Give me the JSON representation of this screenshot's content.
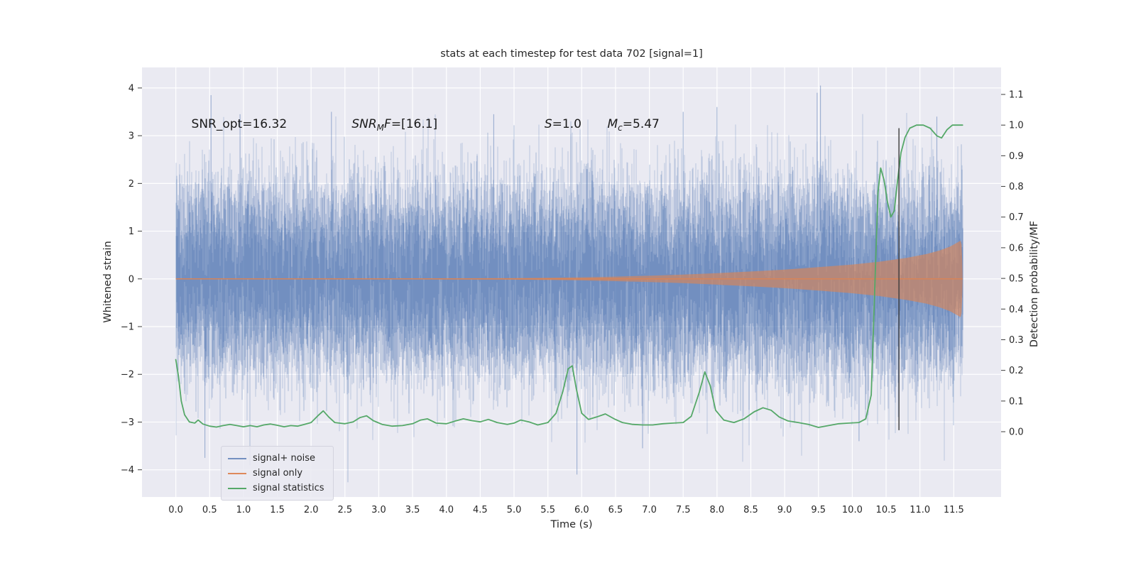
{
  "chart_data": {
    "type": "line",
    "title": "stats at each timestep for test data 702 [signal=1]",
    "xlabel": "Time (s)",
    "ylabel_left": "Whitened strain",
    "ylabel_right": "Detection probability/MF",
    "axes_background": "#eaeaf2",
    "grid_color": "#ffffff",
    "text_color": "#262626",
    "grid_on": true,
    "legend_position": "lower left",
    "xlim": [
      -0.5,
      12.2
    ],
    "ylim_left": [
      -4.57,
      4.43
    ],
    "ylim_right": [
      -0.213,
      1.188
    ],
    "t_start": 0.0,
    "t_end": 11.63,
    "vline": {
      "x": 10.69,
      "color": "#3a3a3a",
      "p_from": 0.005,
      "p_to": 0.99
    },
    "xticks": {
      "values": [
        0,
        0.5,
        1,
        1.5,
        2,
        2.5,
        3,
        3.5,
        4,
        4.5,
        5,
        5.5,
        6,
        6.5,
        7,
        7.5,
        8,
        8.5,
        9,
        9.5,
        10,
        10.5,
        11,
        11.5
      ],
      "labels": [
        "0.0",
        "0.5",
        "1.0",
        "1.5",
        "2.0",
        "2.5",
        "3.0",
        "3.5",
        "4.0",
        "4.5",
        "5.0",
        "5.5",
        "6.0",
        "6.5",
        "7.0",
        "7.5",
        "8.0",
        "8.5",
        "9.0",
        "9.5",
        "10.0",
        "10.5",
        "11.0",
        "11.5"
      ]
    },
    "yticks_left": {
      "values": [
        -4,
        -3,
        -2,
        -1,
        0,
        1,
        2,
        3,
        4
      ],
      "labels": [
        "−4",
        "−3",
        "−2",
        "−1",
        "0",
        "1",
        "2",
        "3",
        "4"
      ]
    },
    "yticks_right": {
      "values": [
        0,
        0.1,
        0.2,
        0.3,
        0.4,
        0.5,
        0.6,
        0.7,
        0.8,
        0.9,
        1.0,
        1.1
      ],
      "labels": [
        "0.0",
        "0.1",
        "0.2",
        "0.3",
        "0.4",
        "0.5",
        "0.6",
        "0.7",
        "0.8",
        "0.9",
        "1.0",
        "1.1"
      ]
    },
    "annotations": [
      {
        "x": 0.23,
        "y": 3.2,
        "parts": [
          {
            "t": "SNR_opt=16.32"
          }
        ]
      },
      {
        "x": 2.6,
        "y": 3.2,
        "parts": [
          {
            "t": "SNR",
            "i": true
          },
          {
            "t": "M",
            "i": true,
            "sub": true
          },
          {
            "t": "F",
            "i": true
          },
          {
            "t": "=[16.1]"
          }
        ]
      },
      {
        "x": 5.45,
        "y": 3.2,
        "parts": [
          {
            "t": "S",
            "i": true
          },
          {
            "t": "=1.0"
          }
        ]
      },
      {
        "x": 6.38,
        "y": 3.2,
        "parts": [
          {
            "t": "M",
            "i": true
          },
          {
            "t": "c",
            "i": true,
            "sub": true
          },
          {
            "t": "=5.47"
          }
        ]
      }
    ],
    "series": [
      {
        "name": "signal+ noise",
        "color": "#4c72b0",
        "kind": "noise",
        "std": 1.0,
        "passes": [
          {
            "k": 20,
            "sigma": 1.0,
            "opacity": 0.3
          },
          {
            "k": 8,
            "sigma": 0.92,
            "opacity": 0.4
          },
          {
            "k": 4,
            "sigma": 0.75,
            "opacity": 0.42
          }
        ],
        "spikes": [
          [
            0.43,
            -3.75
          ],
          [
            0.52,
            3.85
          ],
          [
            0.95,
            3.45
          ],
          [
            2.3,
            3.5
          ],
          [
            4.7,
            3.45
          ],
          [
            5.93,
            -4.1
          ],
          [
            6.9,
            -3.55
          ],
          [
            7.5,
            3.5
          ],
          [
            8.0,
            3.6
          ],
          [
            9.48,
            3.9
          ],
          [
            9.53,
            4.05
          ],
          [
            10.1,
            -3.4
          ],
          [
            11.25,
            3.4
          ]
        ]
      },
      {
        "name": "signal only",
        "color": "#dd8452",
        "kind": "chirp",
        "envelope": [
          [
            0,
            0.006
          ],
          [
            3,
            0.008
          ],
          [
            5,
            0.015
          ],
          [
            5.5,
            0.022
          ],
          [
            6,
            0.032
          ],
          [
            6.5,
            0.047
          ],
          [
            7,
            0.065
          ],
          [
            7.5,
            0.09
          ],
          [
            8,
            0.12
          ],
          [
            8.5,
            0.155
          ],
          [
            9,
            0.195
          ],
          [
            9.5,
            0.245
          ],
          [
            10,
            0.3
          ],
          [
            10.4,
            0.36
          ],
          [
            10.8,
            0.44
          ],
          [
            11.1,
            0.52
          ],
          [
            11.3,
            0.6
          ],
          [
            11.45,
            0.68
          ],
          [
            11.55,
            0.76
          ],
          [
            11.6,
            0.8
          ],
          [
            11.615,
            0.72
          ],
          [
            11.625,
            0.4
          ],
          [
            11.63,
            0.1
          ]
        ]
      },
      {
        "name": "signal statistics",
        "color": "#55a868",
        "kind": "probability",
        "points": [
          [
            0,
            0.235
          ],
          [
            0.04,
            0.18
          ],
          [
            0.08,
            0.1
          ],
          [
            0.13,
            0.055
          ],
          [
            0.2,
            0.032
          ],
          [
            0.28,
            0.028
          ],
          [
            0.33,
            0.038
          ],
          [
            0.4,
            0.025
          ],
          [
            0.5,
            0.018
          ],
          [
            0.6,
            0.015
          ],
          [
            0.7,
            0.02
          ],
          [
            0.8,
            0.024
          ],
          [
            0.9,
            0.02
          ],
          [
            1.0,
            0.016
          ],
          [
            1.1,
            0.02
          ],
          [
            1.2,
            0.016
          ],
          [
            1.3,
            0.022
          ],
          [
            1.4,
            0.025
          ],
          [
            1.5,
            0.021
          ],
          [
            1.6,
            0.016
          ],
          [
            1.7,
            0.02
          ],
          [
            1.8,
            0.018
          ],
          [
            1.9,
            0.024
          ],
          [
            2.0,
            0.03
          ],
          [
            2.1,
            0.052
          ],
          [
            2.18,
            0.068
          ],
          [
            2.26,
            0.048
          ],
          [
            2.35,
            0.03
          ],
          [
            2.5,
            0.026
          ],
          [
            2.62,
            0.032
          ],
          [
            2.72,
            0.046
          ],
          [
            2.82,
            0.052
          ],
          [
            2.92,
            0.036
          ],
          [
            3.05,
            0.024
          ],
          [
            3.2,
            0.018
          ],
          [
            3.35,
            0.02
          ],
          [
            3.5,
            0.026
          ],
          [
            3.62,
            0.038
          ],
          [
            3.72,
            0.042
          ],
          [
            3.85,
            0.028
          ],
          [
            4.0,
            0.026
          ],
          [
            4.12,
            0.034
          ],
          [
            4.25,
            0.042
          ],
          [
            4.38,
            0.036
          ],
          [
            4.5,
            0.032
          ],
          [
            4.62,
            0.04
          ],
          [
            4.75,
            0.03
          ],
          [
            4.9,
            0.024
          ],
          [
            5.0,
            0.028
          ],
          [
            5.1,
            0.038
          ],
          [
            5.22,
            0.032
          ],
          [
            5.35,
            0.022
          ],
          [
            5.5,
            0.03
          ],
          [
            5.62,
            0.06
          ],
          [
            5.72,
            0.13
          ],
          [
            5.8,
            0.205
          ],
          [
            5.86,
            0.215
          ],
          [
            5.92,
            0.14
          ],
          [
            6.0,
            0.06
          ],
          [
            6.1,
            0.04
          ],
          [
            6.22,
            0.048
          ],
          [
            6.35,
            0.058
          ],
          [
            6.48,
            0.042
          ],
          [
            6.6,
            0.03
          ],
          [
            6.75,
            0.024
          ],
          [
            6.9,
            0.022
          ],
          [
            7.05,
            0.022
          ],
          [
            7.2,
            0.026
          ],
          [
            7.35,
            0.028
          ],
          [
            7.5,
            0.03
          ],
          [
            7.62,
            0.05
          ],
          [
            7.74,
            0.13
          ],
          [
            7.82,
            0.195
          ],
          [
            7.9,
            0.15
          ],
          [
            7.98,
            0.07
          ],
          [
            8.1,
            0.038
          ],
          [
            8.25,
            0.03
          ],
          [
            8.4,
            0.042
          ],
          [
            8.55,
            0.065
          ],
          [
            8.68,
            0.078
          ],
          [
            8.8,
            0.07
          ],
          [
            8.92,
            0.048
          ],
          [
            9.05,
            0.035
          ],
          [
            9.2,
            0.03
          ],
          [
            9.35,
            0.024
          ],
          [
            9.5,
            0.014
          ],
          [
            9.65,
            0.02
          ],
          [
            9.8,
            0.026
          ],
          [
            9.95,
            0.028
          ],
          [
            10.1,
            0.03
          ],
          [
            10.2,
            0.042
          ],
          [
            10.28,
            0.12
          ],
          [
            10.33,
            0.45
          ],
          [
            10.38,
            0.78
          ],
          [
            10.42,
            0.86
          ],
          [
            10.47,
            0.82
          ],
          [
            10.52,
            0.75
          ],
          [
            10.57,
            0.7
          ],
          [
            10.62,
            0.72
          ],
          [
            10.67,
            0.82
          ],
          [
            10.72,
            0.91
          ],
          [
            10.78,
            0.96
          ],
          [
            10.85,
            0.99
          ],
          [
            10.95,
            1.0
          ],
          [
            11.05,
            1.0
          ],
          [
            11.15,
            0.99
          ],
          [
            11.25,
            0.965
          ],
          [
            11.32,
            0.958
          ],
          [
            11.4,
            0.985
          ],
          [
            11.48,
            1.0
          ],
          [
            11.63,
            1.0
          ]
        ]
      }
    ],
    "legend_entries": [
      "signal+ noise",
      "signal only",
      "signal statistics"
    ]
  }
}
